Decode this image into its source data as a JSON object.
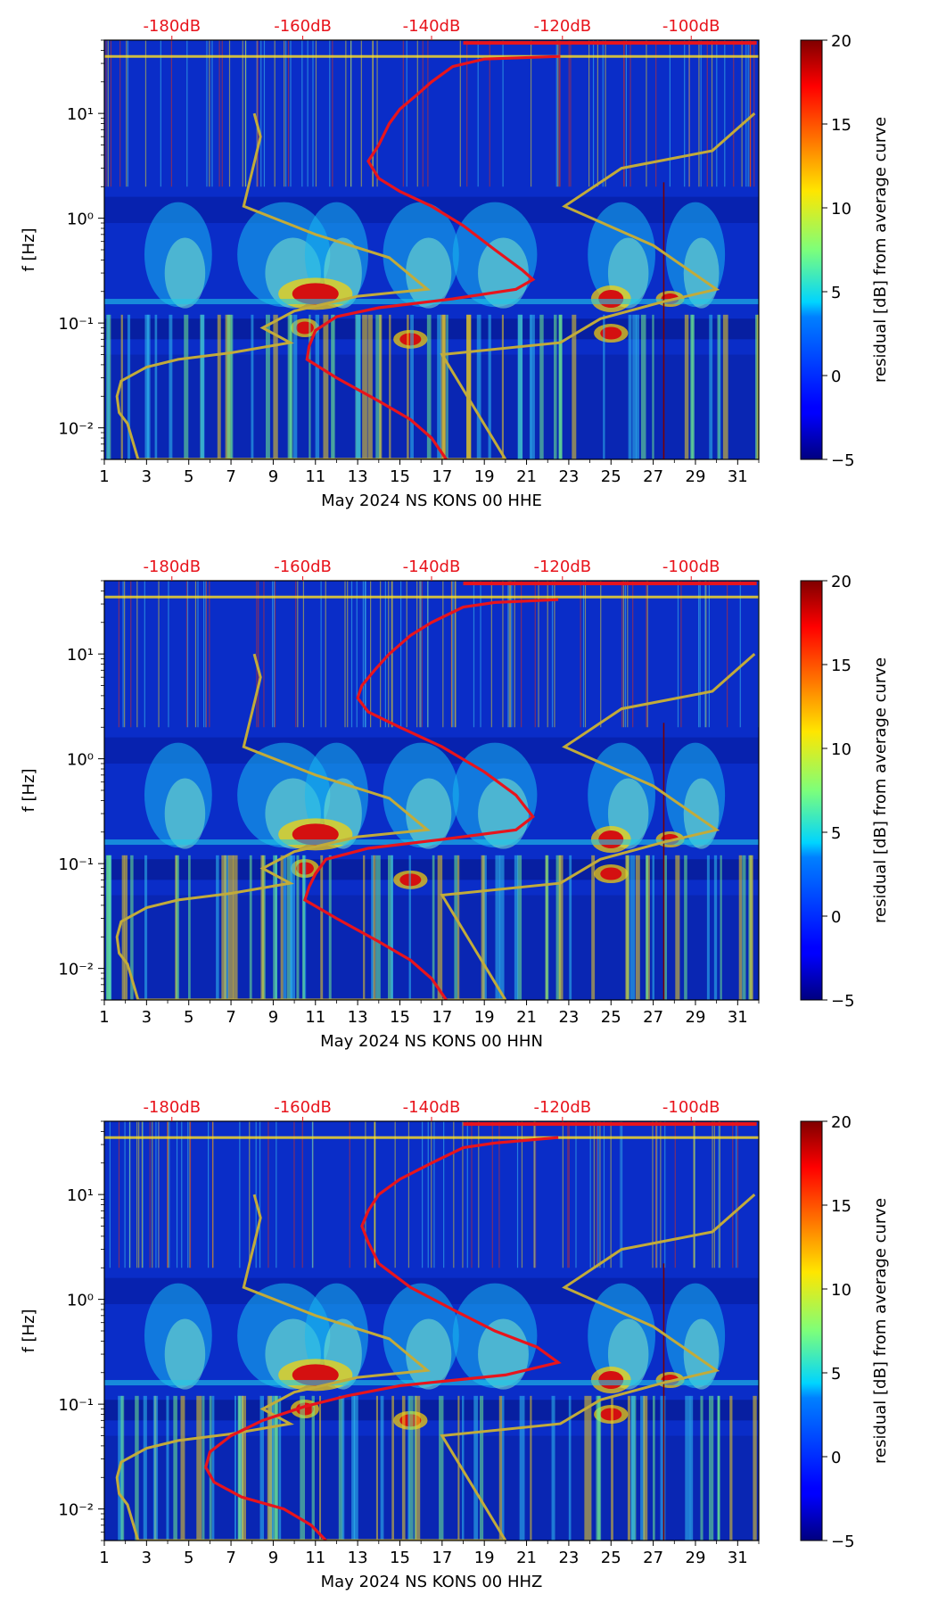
{
  "chart_data": [
    {
      "type": "heatmap",
      "xlabel": "May 2024 NS KONS 00 HHE",
      "ylabel": "f [Hz]",
      "xticks": [
        "1",
        "3",
        "5",
        "7",
        "9",
        "11",
        "13",
        "15",
        "17",
        "19",
        "21",
        "23",
        "25",
        "27",
        "29",
        "31"
      ],
      "yticks": [
        "10⁻²",
        "10⁻¹",
        "10⁰",
        "10¹"
      ],
      "xlim": [
        1,
        32
      ],
      "ylim": [
        0.005,
        50
      ],
      "yscale": "log",
      "top_axis_labels": [
        "-180dB",
        "-160dB",
        "-140dB",
        "-120dB",
        "-100dB"
      ],
      "colorbar": {
        "label": "residual [dB] from average curve",
        "ticks": [
          "−5",
          "0",
          "5",
          "10",
          "15",
          "20"
        ],
        "range": [
          -5,
          20
        ],
        "colormap": "jet"
      },
      "red_curve": [
        [
          22.6,
          35
        ],
        [
          19,
          33
        ],
        [
          17.5,
          28
        ],
        [
          16.5,
          20
        ],
        [
          15.8,
          15
        ],
        [
          15,
          11
        ],
        [
          14.5,
          8
        ],
        [
          14,
          5
        ],
        [
          13.5,
          3.5
        ],
        [
          14,
          2.4
        ],
        [
          15,
          1.8
        ],
        [
          16.5,
          1.3
        ],
        [
          18,
          0.85
        ],
        [
          19.5,
          0.5
        ],
        [
          20.8,
          0.32
        ],
        [
          21.3,
          0.26
        ],
        [
          20.5,
          0.21
        ],
        [
          17.5,
          0.17
        ],
        [
          14,
          0.14
        ],
        [
          12,
          0.115
        ],
        [
          11,
          0.085
        ],
        [
          10.7,
          0.06
        ],
        [
          10.6,
          0.045
        ],
        [
          12,
          0.03
        ],
        [
          14,
          0.018
        ],
        [
          15.5,
          0.012
        ],
        [
          16.5,
          0.008
        ],
        [
          17.2,
          0.005
        ]
      ],
      "olive_curve": [
        [
          8.1,
          10
        ],
        [
          8.4,
          6
        ],
        [
          7.6,
          1.3
        ],
        [
          11,
          0.7
        ],
        [
          14.5,
          0.42
        ],
        [
          16.3,
          0.21
        ],
        [
          13,
          0.18
        ],
        [
          10,
          0.13
        ],
        [
          8.5,
          0.09
        ],
        [
          9.8,
          0.065
        ],
        [
          7,
          0.052
        ],
        [
          4.5,
          0.045
        ],
        [
          3,
          0.038
        ],
        [
          1.8,
          0.028
        ],
        [
          1.6,
          0.02
        ],
        [
          1.7,
          0.014
        ],
        [
          2.1,
          0.011
        ],
        [
          2.6,
          0.005
        ],
        [
          20,
          0.005
        ],
        [
          17,
          0.05
        ],
        [
          22.6,
          0.065
        ],
        [
          24.5,
          0.11
        ],
        [
          27.5,
          0.16
        ],
        [
          30,
          0.21
        ],
        [
          27,
          0.55
        ],
        [
          22.8,
          1.3
        ],
        [
          25.5,
          3
        ],
        [
          29.8,
          4.4
        ],
        [
          31.8,
          10
        ]
      ],
      "dark_red_vertical_x": 27.5
    },
    {
      "type": "heatmap",
      "xlabel": "May 2024 NS KONS 00 HHN",
      "ylabel": "f [Hz]",
      "xticks": [
        "1",
        "3",
        "5",
        "7",
        "9",
        "11",
        "13",
        "15",
        "17",
        "19",
        "21",
        "23",
        "25",
        "27",
        "29",
        "31"
      ],
      "yticks": [
        "10⁻²",
        "10⁻¹",
        "10⁰",
        "10¹"
      ],
      "xlim": [
        1,
        32
      ],
      "ylim": [
        0.005,
        50
      ],
      "yscale": "log",
      "top_axis_labels": [
        "-180dB",
        "-160dB",
        "-140dB",
        "-120dB",
        "-100dB"
      ],
      "colorbar": {
        "label": "residual [dB] from average curve",
        "ticks": [
          "−5",
          "0",
          "5",
          "10",
          "15",
          "20"
        ],
        "range": [
          -5,
          20
        ],
        "colormap": "jet"
      },
      "red_curve": [
        [
          22.5,
          33
        ],
        [
          19.5,
          31
        ],
        [
          18,
          28
        ],
        [
          16.5,
          20
        ],
        [
          15.5,
          15
        ],
        [
          14.5,
          10
        ],
        [
          13.8,
          7
        ],
        [
          13.2,
          5
        ],
        [
          13,
          3.8
        ],
        [
          13.5,
          2.8
        ],
        [
          15,
          2
        ],
        [
          17,
          1.3
        ],
        [
          19,
          0.75
        ],
        [
          20.5,
          0.45
        ],
        [
          21.3,
          0.28
        ],
        [
          20.5,
          0.21
        ],
        [
          17,
          0.17
        ],
        [
          13.5,
          0.14
        ],
        [
          11.5,
          0.11
        ],
        [
          11,
          0.08
        ],
        [
          10.7,
          0.06
        ],
        [
          10.5,
          0.045
        ],
        [
          12,
          0.03
        ],
        [
          14,
          0.018
        ],
        [
          15.5,
          0.012
        ],
        [
          16.5,
          0.008
        ],
        [
          17.2,
          0.005
        ]
      ],
      "olive_curve": [
        [
          8.1,
          10
        ],
        [
          8.4,
          6
        ],
        [
          7.6,
          1.3
        ],
        [
          11,
          0.7
        ],
        [
          14.5,
          0.42
        ],
        [
          16.3,
          0.21
        ],
        [
          13,
          0.18
        ],
        [
          10,
          0.13
        ],
        [
          8.5,
          0.09
        ],
        [
          9.8,
          0.065
        ],
        [
          7,
          0.052
        ],
        [
          4.5,
          0.045
        ],
        [
          3,
          0.038
        ],
        [
          1.8,
          0.028
        ],
        [
          1.6,
          0.02
        ],
        [
          1.7,
          0.014
        ],
        [
          2.1,
          0.011
        ],
        [
          2.6,
          0.005
        ],
        [
          20,
          0.005
        ],
        [
          17,
          0.05
        ],
        [
          22.6,
          0.065
        ],
        [
          24.5,
          0.11
        ],
        [
          27.5,
          0.16
        ],
        [
          30,
          0.21
        ],
        [
          27,
          0.55
        ],
        [
          22.8,
          1.3
        ],
        [
          25.5,
          3
        ],
        [
          29.8,
          4.4
        ],
        [
          31.8,
          10
        ]
      ],
      "dark_red_vertical_x": 27.5
    },
    {
      "type": "heatmap",
      "xlabel": "May 2024 NS KONS 00 HHZ",
      "ylabel": "f [Hz]",
      "xticks": [
        "1",
        "3",
        "5",
        "7",
        "9",
        "11",
        "13",
        "15",
        "17",
        "19",
        "21",
        "23",
        "25",
        "27",
        "29",
        "31"
      ],
      "yticks": [
        "10⁻²",
        "10⁻¹",
        "10⁰",
        "10¹"
      ],
      "xlim": [
        1,
        32
      ],
      "ylim": [
        0.005,
        50
      ],
      "yscale": "log",
      "top_axis_labels": [
        "-180dB",
        "-160dB",
        "-140dB",
        "-120dB",
        "-100dB"
      ],
      "colorbar": {
        "label": "residual [dB] from average curve",
        "ticks": [
          "−5",
          "0",
          "5",
          "10",
          "15",
          "20"
        ],
        "range": [
          -5,
          20
        ],
        "colormap": "jet"
      },
      "red_curve": [
        [
          22.5,
          35
        ],
        [
          19.5,
          31
        ],
        [
          18,
          28
        ],
        [
          16.5,
          20
        ],
        [
          15,
          14
        ],
        [
          14,
          10
        ],
        [
          13.5,
          7
        ],
        [
          13.2,
          5
        ],
        [
          13.5,
          3.5
        ],
        [
          14,
          2.2
        ],
        [
          15.5,
          1.3
        ],
        [
          17.5,
          0.8
        ],
        [
          19.5,
          0.5
        ],
        [
          21.5,
          0.35
        ],
        [
          22.5,
          0.25
        ],
        [
          20,
          0.19
        ],
        [
          15,
          0.15
        ],
        [
          12.5,
          0.12
        ],
        [
          10.5,
          0.095
        ],
        [
          8.5,
          0.07
        ],
        [
          7,
          0.05
        ],
        [
          6,
          0.035
        ],
        [
          5.8,
          0.025
        ],
        [
          6.2,
          0.018
        ],
        [
          7.5,
          0.013
        ],
        [
          9.5,
          0.01
        ],
        [
          10.8,
          0.007
        ],
        [
          11.5,
          0.005
        ]
      ],
      "olive_curve": [
        [
          8.1,
          10
        ],
        [
          8.4,
          6
        ],
        [
          7.6,
          1.3
        ],
        [
          11,
          0.7
        ],
        [
          14.5,
          0.42
        ],
        [
          16.3,
          0.21
        ],
        [
          13,
          0.18
        ],
        [
          10,
          0.13
        ],
        [
          8.5,
          0.09
        ],
        [
          9.8,
          0.065
        ],
        [
          7,
          0.052
        ],
        [
          4.5,
          0.045
        ],
        [
          3,
          0.038
        ],
        [
          1.8,
          0.028
        ],
        [
          1.6,
          0.02
        ],
        [
          1.7,
          0.014
        ],
        [
          2.1,
          0.011
        ],
        [
          2.6,
          0.005
        ],
        [
          20,
          0.005
        ],
        [
          17,
          0.05
        ],
        [
          22.6,
          0.065
        ],
        [
          24.5,
          0.11
        ],
        [
          27.5,
          0.16
        ],
        [
          30,
          0.21
        ],
        [
          27,
          0.55
        ],
        [
          22.8,
          1.3
        ],
        [
          25.5,
          3
        ],
        [
          29.8,
          4.4
        ],
        [
          31.8,
          10
        ]
      ],
      "dark_red_vertical_x": 27.5
    }
  ],
  "colors": {
    "red_curve": "#e8141c",
    "olive_curve": "#c2ab3a",
    "top_label": "#e8141c",
    "background_field": "#0a2dc8"
  }
}
